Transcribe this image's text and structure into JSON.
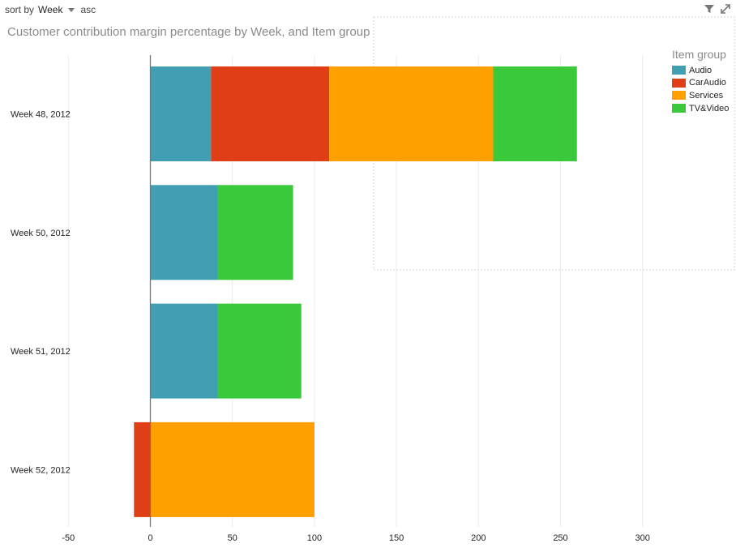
{
  "sort": {
    "prefix": "sort by",
    "field": "Week",
    "direction": "asc"
  },
  "toolbar": {
    "filter_icon": "filter-icon",
    "expand_icon": "expand-icon"
  },
  "chart_data": {
    "type": "bar",
    "orientation": "horizontal",
    "stacked": true,
    "title": "Customer contribution margin percentage by Week, and Item group",
    "xlabel": "",
    "ylabel": "",
    "categories": [
      "Week 48, 2012",
      "Week 50, 2012",
      "Week 51, 2012",
      "Week 52, 2012"
    ],
    "series": [
      {
        "name": "Audio",
        "color": "#429eb3",
        "values": [
          37,
          41,
          41,
          0
        ]
      },
      {
        "name": "CarAudio",
        "color": "#e03e16",
        "values": [
          72,
          0,
          0,
          -10
        ]
      },
      {
        "name": "Services",
        "color": "#ffa000",
        "values": [
          100,
          0,
          0,
          100
        ]
      },
      {
        "name": "TV&Video",
        "color": "#3ac93a",
        "values": [
          51,
          46,
          51,
          0
        ]
      }
    ],
    "xlim": [
      -50,
      350
    ],
    "xticks": [
      -50,
      0,
      50,
      100,
      150,
      200,
      250,
      300
    ],
    "grid": true,
    "legend": {
      "title": "Item group",
      "position": "top-right"
    }
  }
}
